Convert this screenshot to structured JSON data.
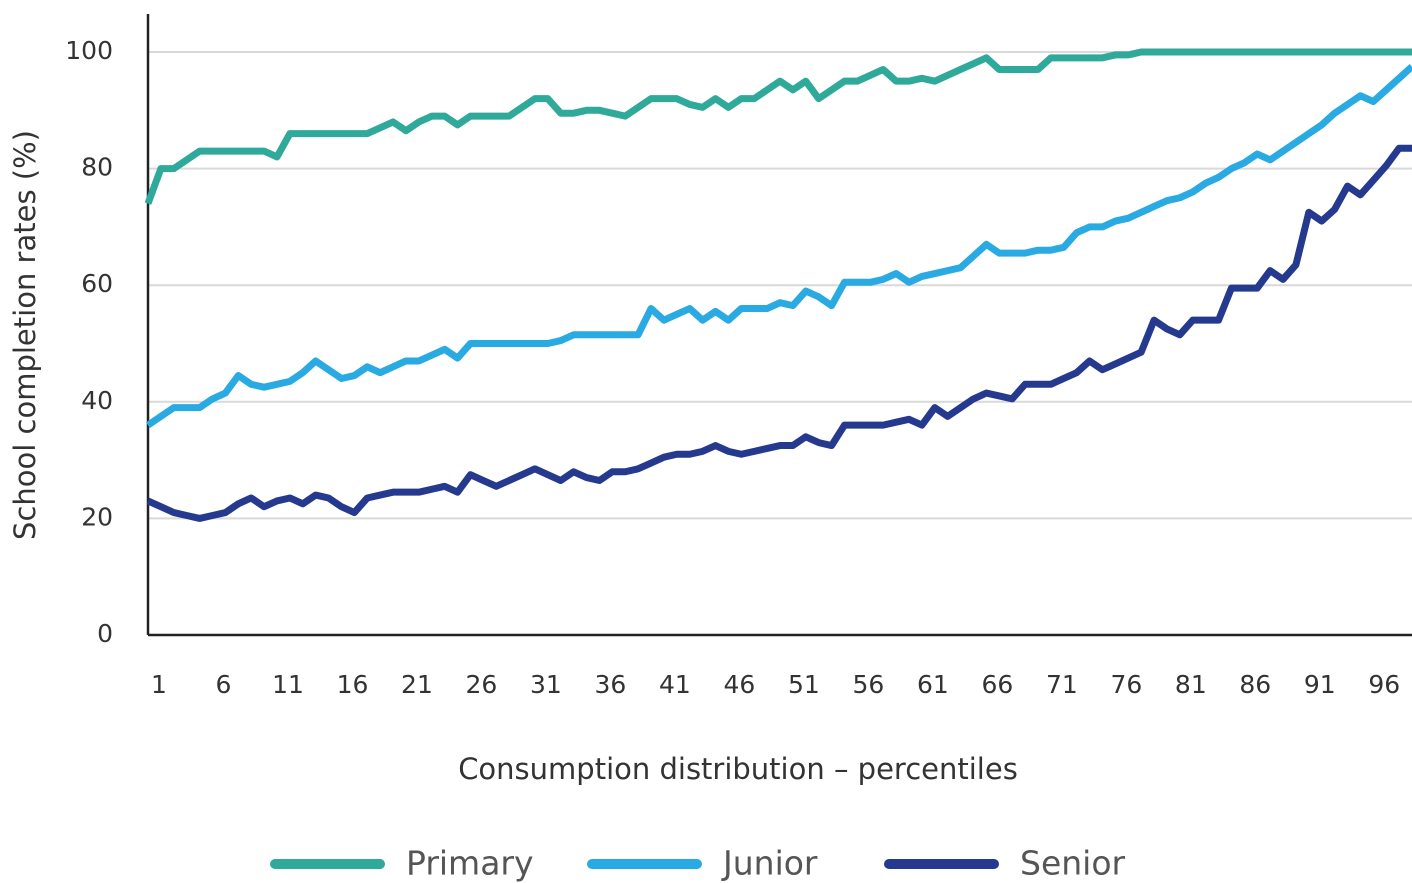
{
  "chart_data": {
    "type": "line",
    "x_label": "Consumption distribution – percentiles",
    "y_label": "School completion rates (%)",
    "x": [
      1,
      2,
      3,
      4,
      5,
      6,
      7,
      8,
      9,
      10,
      11,
      12,
      13,
      14,
      15,
      16,
      17,
      18,
      19,
      20,
      21,
      22,
      23,
      24,
      25,
      26,
      27,
      28,
      29,
      30,
      31,
      32,
      33,
      34,
      35,
      36,
      37,
      38,
      39,
      40,
      41,
      42,
      43,
      44,
      45,
      46,
      47,
      48,
      49,
      50,
      51,
      52,
      53,
      54,
      55,
      56,
      57,
      58,
      59,
      60,
      61,
      62,
      63,
      64,
      65,
      66,
      67,
      68,
      69,
      70,
      71,
      72,
      73,
      74,
      75,
      76,
      77,
      78,
      79,
      80,
      81,
      82,
      83,
      84,
      85,
      86,
      87,
      88,
      89,
      90,
      91,
      92,
      93,
      94,
      95,
      96,
      97,
      98,
      99
    ],
    "xlim": [
      1,
      99
    ],
    "xticks": [
      1,
      6,
      11,
      16,
      21,
      26,
      31,
      36,
      41,
      46,
      51,
      56,
      61,
      66,
      71,
      76,
      81,
      86,
      91,
      96
    ],
    "ylim": [
      0,
      100
    ],
    "yticks": [
      0,
      20,
      40,
      60,
      80,
      100
    ],
    "grid": true,
    "legend": "bottom",
    "series": [
      {
        "name": "Primary",
        "color": "#2fa99a",
        "values": [
          74,
          80,
          80,
          81.5,
          83,
          83,
          83,
          83,
          83,
          83,
          82,
          86,
          86,
          86,
          86,
          86,
          86,
          86,
          87,
          88,
          86.5,
          88,
          89,
          89,
          87.5,
          89,
          89,
          89,
          89,
          90.5,
          92,
          92,
          89.5,
          89.5,
          90,
          90,
          89.5,
          89,
          90.5,
          92,
          92,
          92,
          91,
          90.5,
          92,
          90.5,
          92,
          92,
          93.5,
          95,
          93.5,
          95,
          92,
          93.5,
          95,
          95,
          96,
          97,
          95,
          95,
          95.5,
          95,
          96,
          97,
          98,
          99,
          97,
          97,
          97,
          97,
          99,
          99,
          99,
          99,
          99,
          99.5,
          99.5,
          100,
          100,
          100,
          100,
          100,
          100,
          100,
          100,
          100,
          100,
          100,
          100,
          100,
          100,
          100,
          100,
          100,
          100,
          100,
          100,
          100,
          100
        ]
      },
      {
        "name": "Junior",
        "color": "#2aaae2",
        "values": [
          36,
          37.5,
          39,
          39,
          39,
          40.5,
          41.5,
          44.5,
          43,
          42.5,
          43,
          43.5,
          45,
          47,
          45.5,
          44,
          44.5,
          46,
          45,
          46,
          47,
          47,
          48,
          49,
          47.5,
          50,
          50,
          50,
          50,
          50,
          50,
          50,
          50.5,
          51.5,
          51.5,
          51.5,
          51.5,
          51.5,
          51.5,
          56,
          54,
          55,
          56,
          54,
          55.5,
          54,
          56,
          56,
          56,
          57,
          56.5,
          59,
          58,
          56.5,
          60.5,
          60.5,
          60.5,
          61,
          62,
          60.5,
          61.5,
          62,
          62.5,
          63,
          65,
          67,
          65.5,
          65.5,
          65.5,
          66,
          66,
          66.5,
          69,
          70,
          70,
          71,
          71.5,
          72.5,
          73.5,
          74.5,
          75,
          76,
          77.5,
          78.5,
          80,
          81,
          82.5,
          81.5,
          83,
          84.5,
          86,
          87.5,
          89.5,
          91,
          92.5,
          91.5,
          93.5,
          95.5,
          97.5
        ]
      },
      {
        "name": "Senior",
        "color": "#253a8e",
        "values": [
          23,
          22,
          21,
          20.5,
          20,
          20.5,
          21,
          22.5,
          23.5,
          22,
          23,
          23.5,
          22.5,
          24,
          23.5,
          22,
          21,
          23.5,
          24,
          24.5,
          24.5,
          24.5,
          25,
          25.5,
          24.5,
          27.5,
          26.5,
          25.5,
          26.5,
          27.5,
          28.5,
          27.5,
          26.5,
          28,
          27,
          26.5,
          28,
          28,
          28.5,
          29.5,
          30.5,
          31,
          31,
          31.5,
          32.5,
          31.5,
          31,
          31.5,
          32,
          32.5,
          32.5,
          34,
          33,
          32.5,
          36,
          36,
          36,
          36,
          36.5,
          37,
          36,
          39,
          37.5,
          39,
          40.5,
          41.5,
          41,
          40.5,
          43,
          43,
          43,
          44,
          45,
          47,
          45.5,
          46.5,
          47.5,
          48.5,
          54,
          52.5,
          51.5,
          54,
          54,
          54,
          59.5,
          59.5,
          59.5,
          62.5,
          61,
          63.5,
          72.5,
          71,
          73,
          77,
          75.5,
          78,
          80.5,
          83.5,
          83.5
        ]
      }
    ]
  }
}
